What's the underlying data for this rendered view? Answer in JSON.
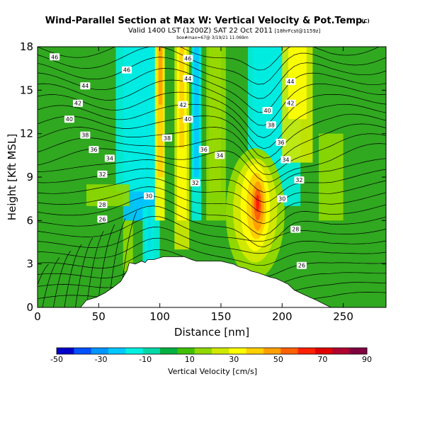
{
  "header": {
    "title": "Wind-Parallel Section at Max W: Vertical Velocity & Pot.Temp.",
    "copyright": "(C)",
    "subtitle": "Valid 1400 LST (1200Z) SAT 22 Oct 2011",
    "subtitle_tag": "[18hrFcst@1159z]",
    "small_line": "box#max=67@ 3/19/21 11.069m"
  },
  "chart_data": {
    "type": "heatmap",
    "xlabel": "Distance [nm]",
    "ylabel": "Height [Kft MSL]",
    "xlim": [
      0,
      285
    ],
    "ylim": [
      0,
      18
    ],
    "xticks": [
      0,
      50,
      100,
      150,
      200,
      250
    ],
    "yticks": [
      0,
      3,
      6,
      9,
      12,
      15,
      18
    ],
    "colorbar": {
      "label": "Vertical Velocity [cm/s]",
      "ticks": [
        -50,
        -30,
        -10,
        10,
        30,
        50,
        70,
        90
      ],
      "colors": [
        "#0000c8",
        "#0050ff",
        "#0096ff",
        "#00c8ff",
        "#00f0e0",
        "#00d8a8",
        "#00b040",
        "#40c000",
        "#90d800",
        "#d0e800",
        "#ffff00",
        "#ffd000",
        "#ffa000",
        "#ff6000",
        "#ff2000",
        "#e00000",
        "#b00030",
        "#800040"
      ]
    },
    "terrain": [
      [
        0,
        0
      ],
      [
        35,
        0
      ],
      [
        40,
        0.5
      ],
      [
        48,
        0.7
      ],
      [
        55,
        1.0
      ],
      [
        62,
        1.4
      ],
      [
        68,
        1.8
      ],
      [
        73,
        2.5
      ],
      [
        75,
        3.1
      ],
      [
        80,
        3.0
      ],
      [
        85,
        3.2
      ],
      [
        88,
        3.1
      ],
      [
        90,
        3.3
      ],
      [
        95,
        3.3
      ],
      [
        103,
        3.5
      ],
      [
        108,
        3.5
      ],
      [
        120,
        3.5
      ],
      [
        126,
        3.3
      ],
      [
        130,
        3.2
      ],
      [
        140,
        3.2
      ],
      [
        150,
        3.2
      ],
      [
        160,
        3.0
      ],
      [
        165,
        2.8
      ],
      [
        170,
        2.7
      ],
      [
        175,
        2.5
      ],
      [
        180,
        2.4
      ],
      [
        190,
        2.1
      ],
      [
        195,
        2.0
      ],
      [
        200,
        1.8
      ],
      [
        205,
        1.6
      ],
      [
        210,
        1.2
      ],
      [
        215,
        1.0
      ],
      [
        220,
        0.8
      ],
      [
        228,
        0.5
      ],
      [
        235,
        0.2
      ],
      [
        240,
        0
      ],
      [
        285,
        0
      ]
    ],
    "theta_labels": [
      {
        "t": "46",
        "x": 14,
        "y": 17.3
      },
      {
        "t": "46",
        "x": 73,
        "y": 16.4
      },
      {
        "t": "46",
        "x": 123,
        "y": 17.2
      },
      {
        "t": "44",
        "x": 39,
        "y": 15.3
      },
      {
        "t": "44",
        "x": 123,
        "y": 15.8
      },
      {
        "t": "44",
        "x": 207,
        "y": 15.6
      },
      {
        "t": "42",
        "x": 33,
        "y": 14.1
      },
      {
        "t": "42",
        "x": 119,
        "y": 14.0
      },
      {
        "t": "42",
        "x": 207,
        "y": 14.1
      },
      {
        "t": "40",
        "x": 26,
        "y": 13.0
      },
      {
        "t": "40",
        "x": 123,
        "y": 13.0
      },
      {
        "t": "40",
        "x": 188,
        "y": 13.6
      },
      {
        "t": "38",
        "x": 39,
        "y": 11.9
      },
      {
        "t": "38",
        "x": 106,
        "y": 11.7
      },
      {
        "t": "38",
        "x": 191,
        "y": 12.6
      },
      {
        "t": "36",
        "x": 46,
        "y": 10.9
      },
      {
        "t": "36",
        "x": 136,
        "y": 10.9
      },
      {
        "t": "36",
        "x": 199,
        "y": 11.4
      },
      {
        "t": "34",
        "x": 59,
        "y": 10.3
      },
      {
        "t": "34",
        "x": 149,
        "y": 10.5
      },
      {
        "t": "34",
        "x": 203,
        "y": 10.2
      },
      {
        "t": "32",
        "x": 53,
        "y": 9.2
      },
      {
        "t": "32",
        "x": 129,
        "y": 8.6
      },
      {
        "t": "32",
        "x": 214,
        "y": 8.8
      },
      {
        "t": "30",
        "x": 91,
        "y": 7.7
      },
      {
        "t": "30",
        "x": 200,
        "y": 7.5
      },
      {
        "t": "28",
        "x": 53,
        "y": 7.1
      },
      {
        "t": "28",
        "x": 211,
        "y": 5.4
      },
      {
        "t": "26",
        "x": 53,
        "y": 6.1
      },
      {
        "t": "26",
        "x": 216,
        "y": 2.9
      }
    ]
  }
}
